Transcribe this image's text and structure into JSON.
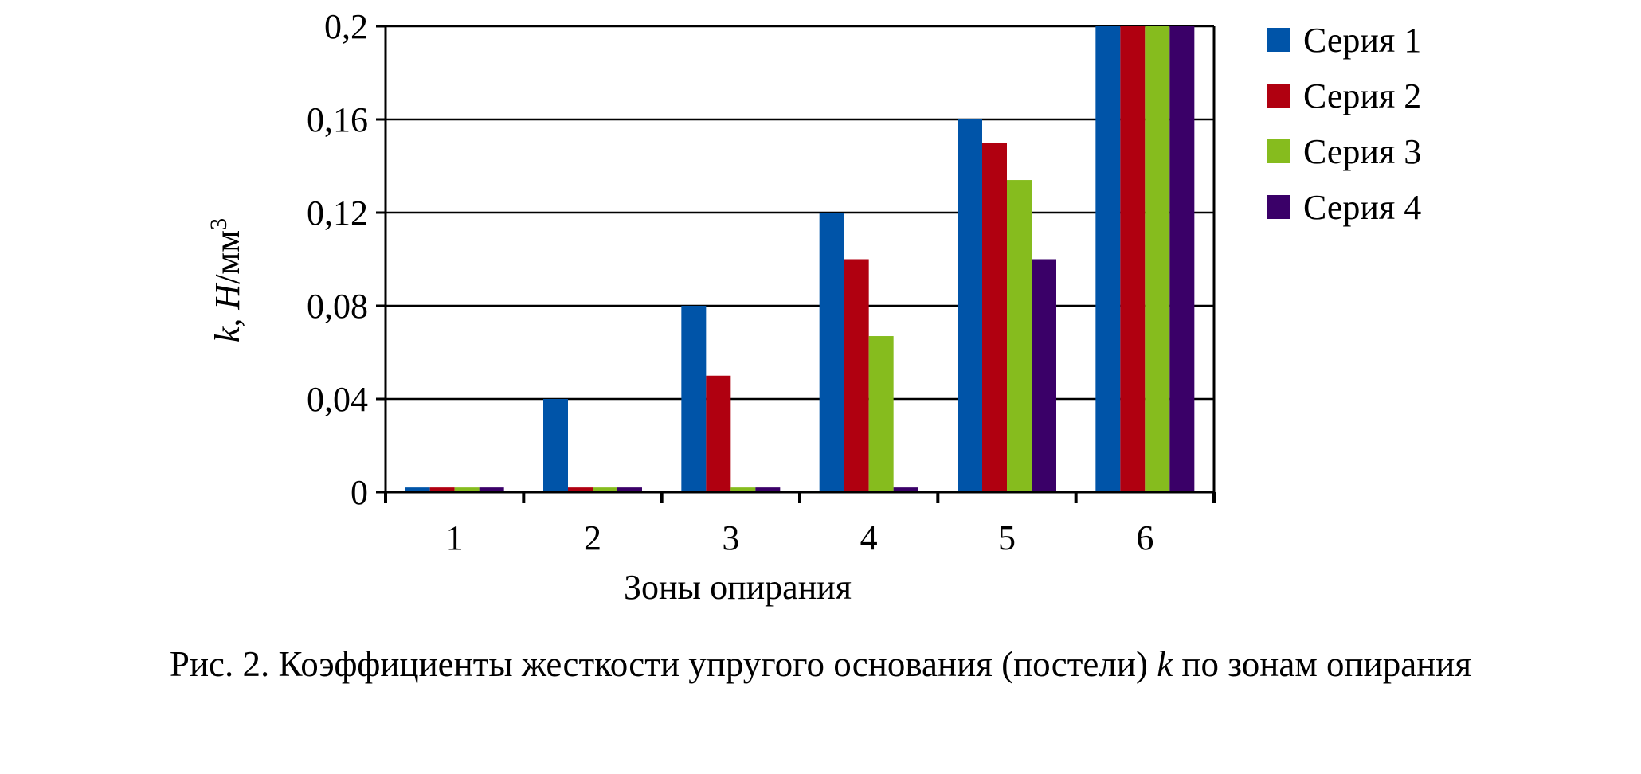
{
  "chart_data": {
    "type": "bar",
    "categories": [
      "1",
      "2",
      "3",
      "4",
      "5",
      "6"
    ],
    "series": [
      {
        "name": "Серия 1",
        "color": "#0054a8",
        "values": [
          0.002,
          0.04,
          0.08,
          0.12,
          0.16,
          0.2
        ]
      },
      {
        "name": "Серия 2",
        "color": "#b00010",
        "values": [
          0.002,
          0.002,
          0.05,
          0.1,
          0.15,
          0.2
        ]
      },
      {
        "name": "Серия 3",
        "color": "#86bc1e",
        "values": [
          0.002,
          0.002,
          0.002,
          0.067,
          0.134,
          0.2
        ]
      },
      {
        "name": "Серия 4",
        "color": "#3a0068",
        "values": [
          0.002,
          0.002,
          0.002,
          0.002,
          0.1,
          0.2
        ]
      }
    ],
    "yticks": [
      "0",
      "0,04",
      "0,08",
      "0,12",
      "0,16",
      "0,2"
    ],
    "ytick_values": [
      0,
      0.04,
      0.08,
      0.12,
      0.16,
      0.2
    ],
    "ylim": [
      0,
      0.2
    ],
    "xlabel": "Зоны опирания",
    "ylabel": {
      "var": "k",
      "sep": ", ",
      "unit_var": "H",
      "unit": "/мм",
      "exp": "3"
    },
    "grid": true,
    "legend_position": "right"
  },
  "caption": {
    "prefix": "Рис. 2. Коэффициенты жесткости упругого основания (постели) ",
    "var": "k",
    "suffix": " по зонам опирания"
  }
}
